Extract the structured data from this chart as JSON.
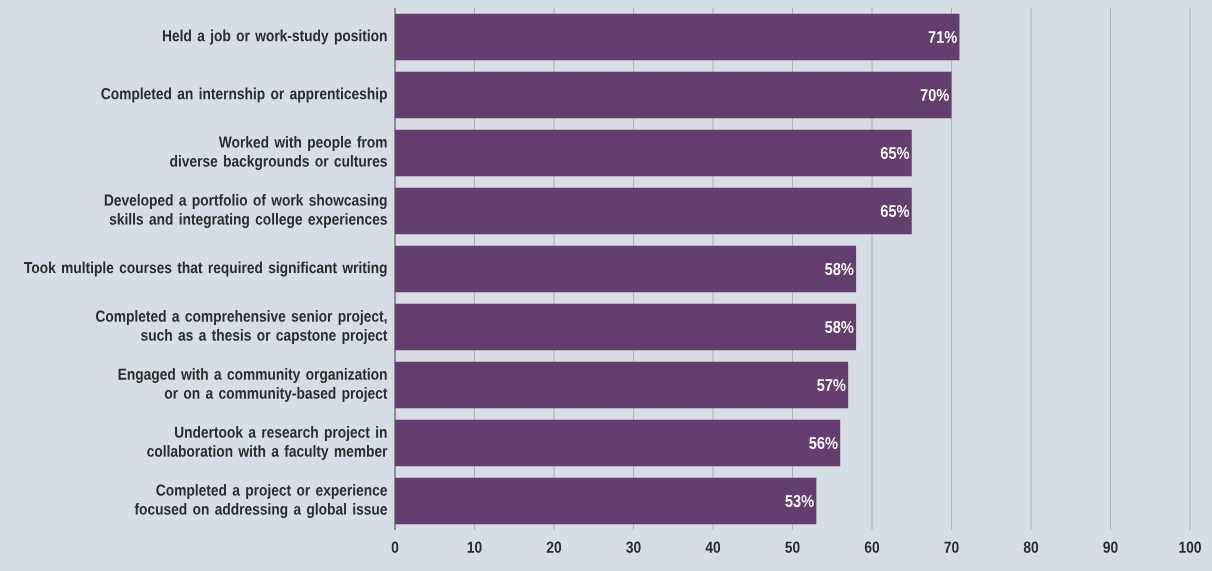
{
  "chart_data": {
    "type": "bar",
    "orientation": "horizontal",
    "categories": [
      "Held a job or work-study position",
      "Completed an internship or apprenticeship",
      "Worked with people from diverse backgrounds or cultures",
      "Developed a portfolio of work showcasing skills and integrating college experiences",
      "Took multiple courses that required significant writing",
      "Completed a comprehensive senior project, such as a thesis or capstone project",
      "Engaged with a community organization or on a community-based project",
      "Undertook a research project in collaboration with a faculty member",
      "Completed a project or experience focused on addressing a global issue"
    ],
    "values": [
      71,
      70,
      65,
      65,
      58,
      58,
      57,
      56,
      53
    ],
    "value_labels": [
      "71%",
      "70%",
      "65%",
      "65%",
      "58%",
      "58%",
      "57%",
      "56%",
      "53%"
    ],
    "color": "#643e6e",
    "xlim": [
      0,
      100
    ],
    "xticks": [
      0,
      10,
      20,
      30,
      40,
      50,
      60,
      70,
      80,
      90,
      100
    ],
    "grid": "x"
  }
}
